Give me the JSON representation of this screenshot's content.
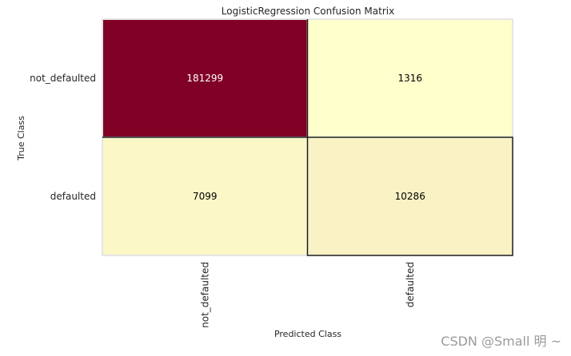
{
  "chart_data": {
    "type": "heatmap",
    "title": "LogisticRegression Confusion Matrix",
    "xlabel": "Predicted Class",
    "ylabel": "True Class",
    "x_categories": [
      "not_defaulted",
      "defaulted"
    ],
    "y_categories": [
      "not_defaulted",
      "defaulted"
    ],
    "values": [
      [
        181299,
        1316
      ],
      [
        7099,
        10286
      ]
    ],
    "colormap": {
      "low": "#ffffcc",
      "high": "#800026",
      "text_on_dark": "#ffffff",
      "text_on_light": "#000000"
    },
    "grid": false,
    "diagonal_cells_outlined": true
  },
  "watermark": "CSDN @Small  明 ~"
}
